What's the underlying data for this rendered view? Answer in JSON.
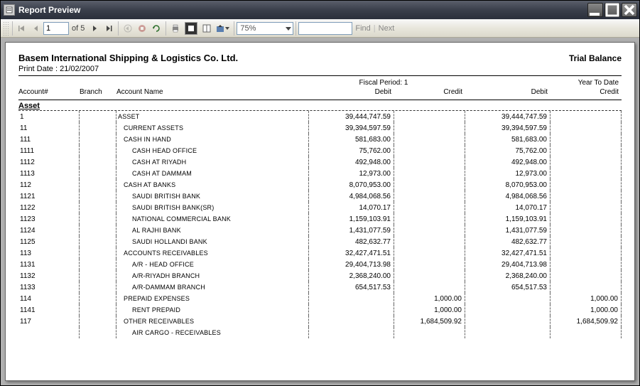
{
  "window": {
    "title": "Report Preview"
  },
  "toolbar": {
    "page_current": "1",
    "page_of_label": "of",
    "page_total": "5",
    "zoom": "75%",
    "find_label": "Find",
    "next_label": "Next"
  },
  "report": {
    "company": "Basem International Shipping & Logistics Co. Ltd.",
    "title": "Trial Balance",
    "print_date_label": "Print Date :",
    "print_date": "21/02/2007",
    "period1_label": "Fiscal Period: 1",
    "period2_label": "Year To Date",
    "columns": {
      "account": "Account#",
      "branch": "Branch",
      "name": "Account Name",
      "debit": "Debit",
      "credit": "Credit"
    },
    "group": "Asset",
    "rows": [
      {
        "acct": "1",
        "indent": 0,
        "name": "ASSET",
        "d1": "39,444,747.59",
        "c1": "",
        "d2": "39,444,747.59",
        "c2": ""
      },
      {
        "acct": "11",
        "indent": 1,
        "name": "CURRENT ASSETS",
        "d1": "39,394,597.59",
        "c1": "",
        "d2": "39,394,597.59",
        "c2": ""
      },
      {
        "acct": "111",
        "indent": 1,
        "name": "CASH IN HAND",
        "d1": "581,683.00",
        "c1": "",
        "d2": "581,683.00",
        "c2": ""
      },
      {
        "acct": "1111",
        "indent": 2,
        "name": "CASH HEAD OFFICE",
        "d1": "75,762.00",
        "c1": "",
        "d2": "75,762.00",
        "c2": ""
      },
      {
        "acct": "1112",
        "indent": 2,
        "name": "CASH AT RIYADH",
        "d1": "492,948.00",
        "c1": "",
        "d2": "492,948.00",
        "c2": ""
      },
      {
        "acct": "1113",
        "indent": 2,
        "name": "CASH AT DAMMAM",
        "d1": "12,973.00",
        "c1": "",
        "d2": "12,973.00",
        "c2": ""
      },
      {
        "acct": "112",
        "indent": 1,
        "name": "CASH AT BANKS",
        "d1": "8,070,953.00",
        "c1": "",
        "d2": "8,070,953.00",
        "c2": ""
      },
      {
        "acct": "1121",
        "indent": 2,
        "name": "SAUDI BRITISH BANK",
        "d1": "4,984,068.56",
        "c1": "",
        "d2": "4,984,068.56",
        "c2": ""
      },
      {
        "acct": "1122",
        "indent": 2,
        "name": "SAUDI BRITISH BANK(SR)",
        "d1": "14,070.17",
        "c1": "",
        "d2": "14,070.17",
        "c2": ""
      },
      {
        "acct": "1123",
        "indent": 2,
        "name": "NATIONAL COMMERCIAL BANK",
        "d1": "1,159,103.91",
        "c1": "",
        "d2": "1,159,103.91",
        "c2": ""
      },
      {
        "acct": "1124",
        "indent": 2,
        "name": "AL RAJHI BANK",
        "d1": "1,431,077.59",
        "c1": "",
        "d2": "1,431,077.59",
        "c2": ""
      },
      {
        "acct": "1125",
        "indent": 2,
        "name": "SAUDI HOLLANDI BANK",
        "d1": "482,632.77",
        "c1": "",
        "d2": "482,632.77",
        "c2": ""
      },
      {
        "acct": "113",
        "indent": 1,
        "name": "ACCOUNTS RECEIVABLES",
        "d1": "32,427,471.51",
        "c1": "",
        "d2": "32,427,471.51",
        "c2": ""
      },
      {
        "acct": "1131",
        "indent": 2,
        "name": "A/R - HEAD OFFICE",
        "d1": "29,404,713.98",
        "c1": "",
        "d2": "29,404,713.98",
        "c2": ""
      },
      {
        "acct": "1132",
        "indent": 2,
        "name": "A/R-RIYADH BRANCH",
        "d1": "2,368,240.00",
        "c1": "",
        "d2": "2,368,240.00",
        "c2": ""
      },
      {
        "acct": "1133",
        "indent": 2,
        "name": "A/R-DAMMAM BRANCH",
        "d1": "654,517.53",
        "c1": "",
        "d2": "654,517.53",
        "c2": ""
      },
      {
        "acct": "114",
        "indent": 1,
        "name": "PREPAID EXPENSES",
        "d1": "",
        "c1": "1,000.00",
        "d2": "",
        "c2": "1,000.00"
      },
      {
        "acct": "1141",
        "indent": 2,
        "name": "RENT PREPAID",
        "d1": "",
        "c1": "1,000.00",
        "d2": "",
        "c2": "1,000.00"
      },
      {
        "acct": "117",
        "indent": 1,
        "name": "OTHER RECEIVABLES",
        "d1": "",
        "c1": "1,684,509.92",
        "d2": "",
        "c2": "1,684,509.92"
      },
      {
        "acct": "",
        "indent": 2,
        "name": "AIR CARGO - RECEIVABLES",
        "d1": "",
        "c1": "",
        "d2": "",
        "c2": ""
      }
    ]
  },
  "colors": {
    "titlebar_top": "#5a5f6b",
    "titlebar_bottom": "#2a2f3b",
    "toolbar_bg": "#e8e6dc",
    "content_bg": "#b0b0b0",
    "paper_bg": "#ffffff",
    "text": "#000000",
    "dash": "#666666"
  }
}
